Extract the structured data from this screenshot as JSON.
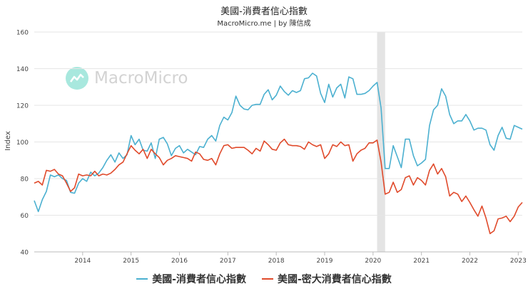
{
  "header": {
    "title": "美國-消費者信心指數",
    "subtitle": "MacroMicro.me | by 陳信成"
  },
  "watermark": {
    "text": "MacroMicro",
    "icon": "macromicro-logo-icon"
  },
  "colors": {
    "series1": "#4bb0d0",
    "series2": "#e04a2b",
    "grid": "#e6e6e6",
    "recession": "#e4e4e4"
  },
  "chart_data": {
    "type": "line",
    "ylabel": "Index",
    "xlabel": "",
    "ylim": [
      40,
      160
    ],
    "yticks": [
      40,
      60,
      80,
      100,
      120,
      140,
      160
    ],
    "xlim": [
      "2013-01",
      "2023-02"
    ],
    "xticks": [
      "2014",
      "2015",
      "2016",
      "2017",
      "2018",
      "2019",
      "2020",
      "2021",
      "2022",
      "2023"
    ],
    "grid": "horizontal",
    "legend_position": "bottom",
    "shaded_regions": [
      {
        "start": "2020-02",
        "end": "2020-04"
      }
    ],
    "series": [
      {
        "name": "美國-消費者信心指數",
        "x": [
          "2013-01",
          "2013-02",
          "2013-03",
          "2013-04",
          "2013-05",
          "2013-06",
          "2013-07",
          "2013-08",
          "2013-09",
          "2013-10",
          "2013-11",
          "2013-12",
          "2014-01",
          "2014-02",
          "2014-03",
          "2014-04",
          "2014-05",
          "2014-06",
          "2014-07",
          "2014-08",
          "2014-09",
          "2014-10",
          "2014-11",
          "2014-12",
          "2015-01",
          "2015-02",
          "2015-03",
          "2015-04",
          "2015-05",
          "2015-06",
          "2015-07",
          "2015-08",
          "2015-09",
          "2015-10",
          "2015-11",
          "2015-12",
          "2016-01",
          "2016-02",
          "2016-03",
          "2016-04",
          "2016-05",
          "2016-06",
          "2016-07",
          "2016-08",
          "2016-09",
          "2016-10",
          "2016-11",
          "2016-12",
          "2017-01",
          "2017-02",
          "2017-03",
          "2017-04",
          "2017-05",
          "2017-06",
          "2017-07",
          "2017-08",
          "2017-09",
          "2017-10",
          "2017-11",
          "2017-12",
          "2018-01",
          "2018-02",
          "2018-03",
          "2018-04",
          "2018-05",
          "2018-06",
          "2018-07",
          "2018-08",
          "2018-09",
          "2018-10",
          "2018-11",
          "2018-12",
          "2019-01",
          "2019-02",
          "2019-03",
          "2019-04",
          "2019-05",
          "2019-06",
          "2019-07",
          "2019-08",
          "2019-09",
          "2019-10",
          "2019-11",
          "2019-12",
          "2020-01",
          "2020-02",
          "2020-03",
          "2020-04",
          "2020-05",
          "2020-06",
          "2020-07",
          "2020-08",
          "2020-09",
          "2020-10",
          "2020-11",
          "2020-12",
          "2021-01",
          "2021-02",
          "2021-03",
          "2021-04",
          "2021-05",
          "2021-06",
          "2021-07",
          "2021-08",
          "2021-09",
          "2021-10",
          "2021-11",
          "2021-12",
          "2022-01",
          "2022-02",
          "2022-03",
          "2022-04",
          "2022-05",
          "2022-06",
          "2022-07",
          "2022-08",
          "2022-09",
          "2022-10",
          "2022-11",
          "2022-12",
          "2023-01",
          "2023-02"
        ],
        "values": [
          68.0,
          62.0,
          68.5,
          73.0,
          82.0,
          81.0,
          82.0,
          80.0,
          79.0,
          72.5,
          72.0,
          77.5,
          80.0,
          78.5,
          83.5,
          81.5,
          83.0,
          86.0,
          90.0,
          93.0,
          89.0,
          94.0,
          91.0,
          93.0,
          103.5,
          98.5,
          101.5,
          95.5,
          95.0,
          99.5,
          91.0,
          101.5,
          102.5,
          99.0,
          92.5,
          96.5,
          98.0,
          94.0,
          96.0,
          94.5,
          93.0,
          97.5,
          97.0,
          101.5,
          103.5,
          100.5,
          109.0,
          113.5,
          112.0,
          116.0,
          125.0,
          120.0,
          118.0,
          117.5,
          120.0,
          120.5,
          120.5,
          126.0,
          128.5,
          123.0,
          125.5,
          130.5,
          127.5,
          125.5,
          128.0,
          127.0,
          128.0,
          134.5,
          135.0,
          137.5,
          136.0,
          126.5,
          121.5,
          131.5,
          124.5,
          129.5,
          131.5,
          124.0,
          135.5,
          134.5,
          126.0,
          126.0,
          126.5,
          128.0,
          130.5,
          132.5,
          118.5,
          85.5,
          85.5,
          98.0,
          92.0,
          86.0,
          101.5,
          101.5,
          92.5,
          87.0,
          88.5,
          90.5,
          109.0,
          117.5,
          120.0,
          129.0,
          125.0,
          115.0,
          110.0,
          111.5,
          111.5,
          115.0,
          111.5,
          106.5,
          107.5,
          107.5,
          106.5,
          98.5,
          95.5,
          103.5,
          108.0,
          102.0,
          101.5,
          109.0,
          108.0,
          107.0
        ]
      },
      {
        "name": "美國-密大消費者信心指數",
        "x": [
          "2013-01",
          "2013-02",
          "2013-03",
          "2013-04",
          "2013-05",
          "2013-06",
          "2013-07",
          "2013-08",
          "2013-09",
          "2013-10",
          "2013-11",
          "2013-12",
          "2014-01",
          "2014-02",
          "2014-03",
          "2014-04",
          "2014-05",
          "2014-06",
          "2014-07",
          "2014-08",
          "2014-09",
          "2014-10",
          "2014-11",
          "2014-12",
          "2015-01",
          "2015-02",
          "2015-03",
          "2015-04",
          "2015-05",
          "2015-06",
          "2015-07",
          "2015-08",
          "2015-09",
          "2015-10",
          "2015-11",
          "2015-12",
          "2016-01",
          "2016-02",
          "2016-03",
          "2016-04",
          "2016-05",
          "2016-06",
          "2016-07",
          "2016-08",
          "2016-09",
          "2016-10",
          "2016-11",
          "2016-12",
          "2017-01",
          "2017-02",
          "2017-03",
          "2017-04",
          "2017-05",
          "2017-06",
          "2017-07",
          "2017-08",
          "2017-09",
          "2017-10",
          "2017-11",
          "2017-12",
          "2018-01",
          "2018-02",
          "2018-03",
          "2018-04",
          "2018-05",
          "2018-06",
          "2018-07",
          "2018-08",
          "2018-09",
          "2018-10",
          "2018-11",
          "2018-12",
          "2019-01",
          "2019-02",
          "2019-03",
          "2019-04",
          "2019-05",
          "2019-06",
          "2019-07",
          "2019-08",
          "2019-09",
          "2019-10",
          "2019-11",
          "2019-12",
          "2020-01",
          "2020-02",
          "2020-03",
          "2020-04",
          "2020-05",
          "2020-06",
          "2020-07",
          "2020-08",
          "2020-09",
          "2020-10",
          "2020-11",
          "2020-12",
          "2021-01",
          "2021-02",
          "2021-03",
          "2021-04",
          "2021-05",
          "2021-06",
          "2021-07",
          "2021-08",
          "2021-09",
          "2021-10",
          "2021-11",
          "2021-12",
          "2022-01",
          "2022-02",
          "2022-03",
          "2022-04",
          "2022-05",
          "2022-06",
          "2022-07",
          "2022-08",
          "2022-09",
          "2022-10",
          "2022-11",
          "2022-12",
          "2023-01",
          "2023-02"
        ],
        "values": [
          77.5,
          78.5,
          76.5,
          84.5,
          84.0,
          85.0,
          82.5,
          81.5,
          77.5,
          73.0,
          75.0,
          82.5,
          81.5,
          82.0,
          81.5,
          84.0,
          81.5,
          82.5,
          82.0,
          83.0,
          85.0,
          87.5,
          89.0,
          93.5,
          98.0,
          95.5,
          93.5,
          96.0,
          91.0,
          96.0,
          93.5,
          91.5,
          87.5,
          90.0,
          91.0,
          92.5,
          92.0,
          91.5,
          91.0,
          89.5,
          94.5,
          93.5,
          90.5,
          90.0,
          91.0,
          87.5,
          93.5,
          98.0,
          98.5,
          96.5,
          97.0,
          97.0,
          97.0,
          95.5,
          93.5,
          96.5,
          95.0,
          100.5,
          98.5,
          96.0,
          95.5,
          99.5,
          101.5,
          98.5,
          98.0,
          98.0,
          97.5,
          96.0,
          100.0,
          98.5,
          97.5,
          98.5,
          91.0,
          93.5,
          98.5,
          97.5,
          100.0,
          98.0,
          98.5,
          89.5,
          93.5,
          95.5,
          96.5,
          99.5,
          99.5,
          101.0,
          89.0,
          71.5,
          72.5,
          78.0,
          72.5,
          74.0,
          80.5,
          81.5,
          76.5,
          80.5,
          79.0,
          76.5,
          84.5,
          88.0,
          82.5,
          85.5,
          81.0,
          70.5,
          72.5,
          71.5,
          67.5,
          70.5,
          67.0,
          63.0,
          59.5,
          65.0,
          58.5,
          50.0,
          51.5,
          58.0,
          58.5,
          59.5,
          56.5,
          59.5,
          64.5,
          67.0
        ]
      }
    ]
  }
}
